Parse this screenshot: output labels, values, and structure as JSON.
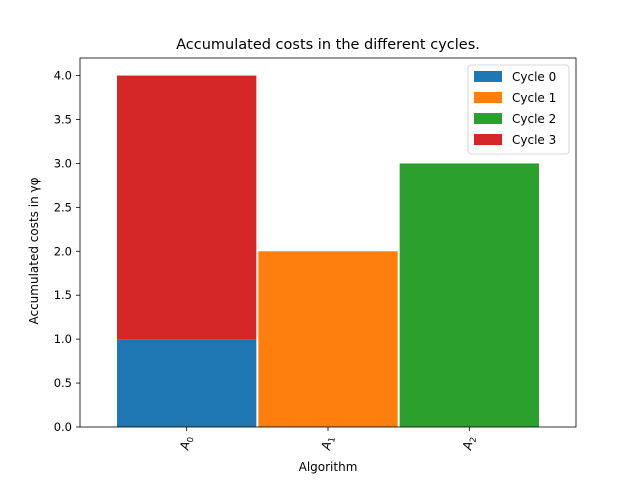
{
  "chart_data": {
    "type": "bar",
    "stacked": true,
    "title": "Accumulated costs in the different cycles.",
    "xlabel": "Algorithm",
    "ylabel": "Accumulated costs in γφ",
    "categories": [
      {
        "base": "A",
        "sub": "0"
      },
      {
        "base": "A",
        "sub": "1"
      },
      {
        "base": "A",
        "sub": "2"
      }
    ],
    "ylim": [
      0,
      4.2
    ],
    "yticks": [
      "0.0",
      "0.5",
      "1.0",
      "1.5",
      "2.0",
      "2.5",
      "3.0",
      "3.5",
      "4.0"
    ],
    "grid": false,
    "legend_position": "top-right",
    "series": [
      {
        "name": "Cycle 0",
        "color": "#1f77b4",
        "values": [
          1,
          0,
          0
        ]
      },
      {
        "name": "Cycle 1",
        "color": "#ff7f0e",
        "values": [
          0,
          2,
          0
        ]
      },
      {
        "name": "Cycle 2",
        "color": "#2ca02c",
        "values": [
          0,
          0,
          3
        ]
      },
      {
        "name": "Cycle 3",
        "color": "#d62728",
        "values": [
          3,
          0,
          0
        ]
      }
    ]
  }
}
